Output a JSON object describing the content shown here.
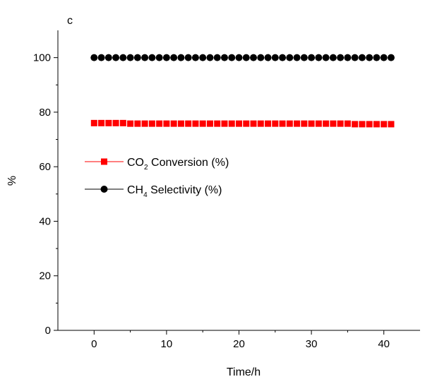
{
  "chart_data": {
    "type": "scatter",
    "panel_label": "c",
    "xlabel": "Time/h",
    "ylabel": "%",
    "xlim": [
      -5,
      45
    ],
    "ylim": [
      0,
      110
    ],
    "xticks": [
      0,
      10,
      20,
      30,
      40
    ],
    "yticks": [
      0,
      20,
      40,
      60,
      80,
      100
    ],
    "x_tick_labels": [
      "0",
      "10",
      "20",
      "30",
      "40"
    ],
    "y_tick_labels": [
      "0",
      "20",
      "40",
      "60",
      "80",
      "100"
    ],
    "grid": false,
    "legend_position": "middle-left",
    "x": [
      0,
      1,
      2,
      3,
      4,
      5,
      6,
      7,
      8,
      9,
      10,
      11,
      12,
      13,
      14,
      15,
      16,
      17,
      18,
      19,
      20,
      21,
      22,
      23,
      24,
      25,
      26,
      27,
      28,
      29,
      30,
      31,
      32,
      33,
      34,
      35,
      36,
      37,
      38,
      39,
      40,
      41
    ],
    "series": [
      {
        "name": "CO2 Conversion (%)",
        "legend_main": "CO",
        "legend_sub": "2",
        "legend_rest": " Conversion (%)",
        "color": "#ff0000",
        "marker": "square",
        "values": [
          76,
          76,
          76,
          76,
          76,
          75.8,
          75.8,
          75.8,
          75.8,
          75.8,
          75.8,
          75.8,
          75.8,
          75.8,
          75.8,
          75.8,
          75.8,
          75.8,
          75.8,
          75.8,
          75.8,
          75.8,
          75.8,
          75.8,
          75.8,
          75.8,
          75.8,
          75.8,
          75.8,
          75.8,
          75.8,
          75.8,
          75.8,
          75.8,
          75.8,
          75.8,
          75.6,
          75.6,
          75.6,
          75.6,
          75.6,
          75.6
        ]
      },
      {
        "name": "CH4 Selectivity (%)",
        "legend_main": "CH",
        "legend_sub": "4",
        "legend_rest": " Selectivity (%)",
        "color": "#000000",
        "marker": "circle",
        "values": [
          100,
          100,
          100,
          100,
          100,
          100,
          100,
          100,
          100,
          100,
          100,
          100,
          100,
          100,
          100,
          100,
          100,
          100,
          100,
          100,
          100,
          100,
          100,
          100,
          100,
          100,
          100,
          100,
          100,
          100,
          100,
          100,
          100,
          100,
          100,
          100,
          100,
          100,
          100,
          100,
          100,
          100
        ]
      }
    ]
  }
}
